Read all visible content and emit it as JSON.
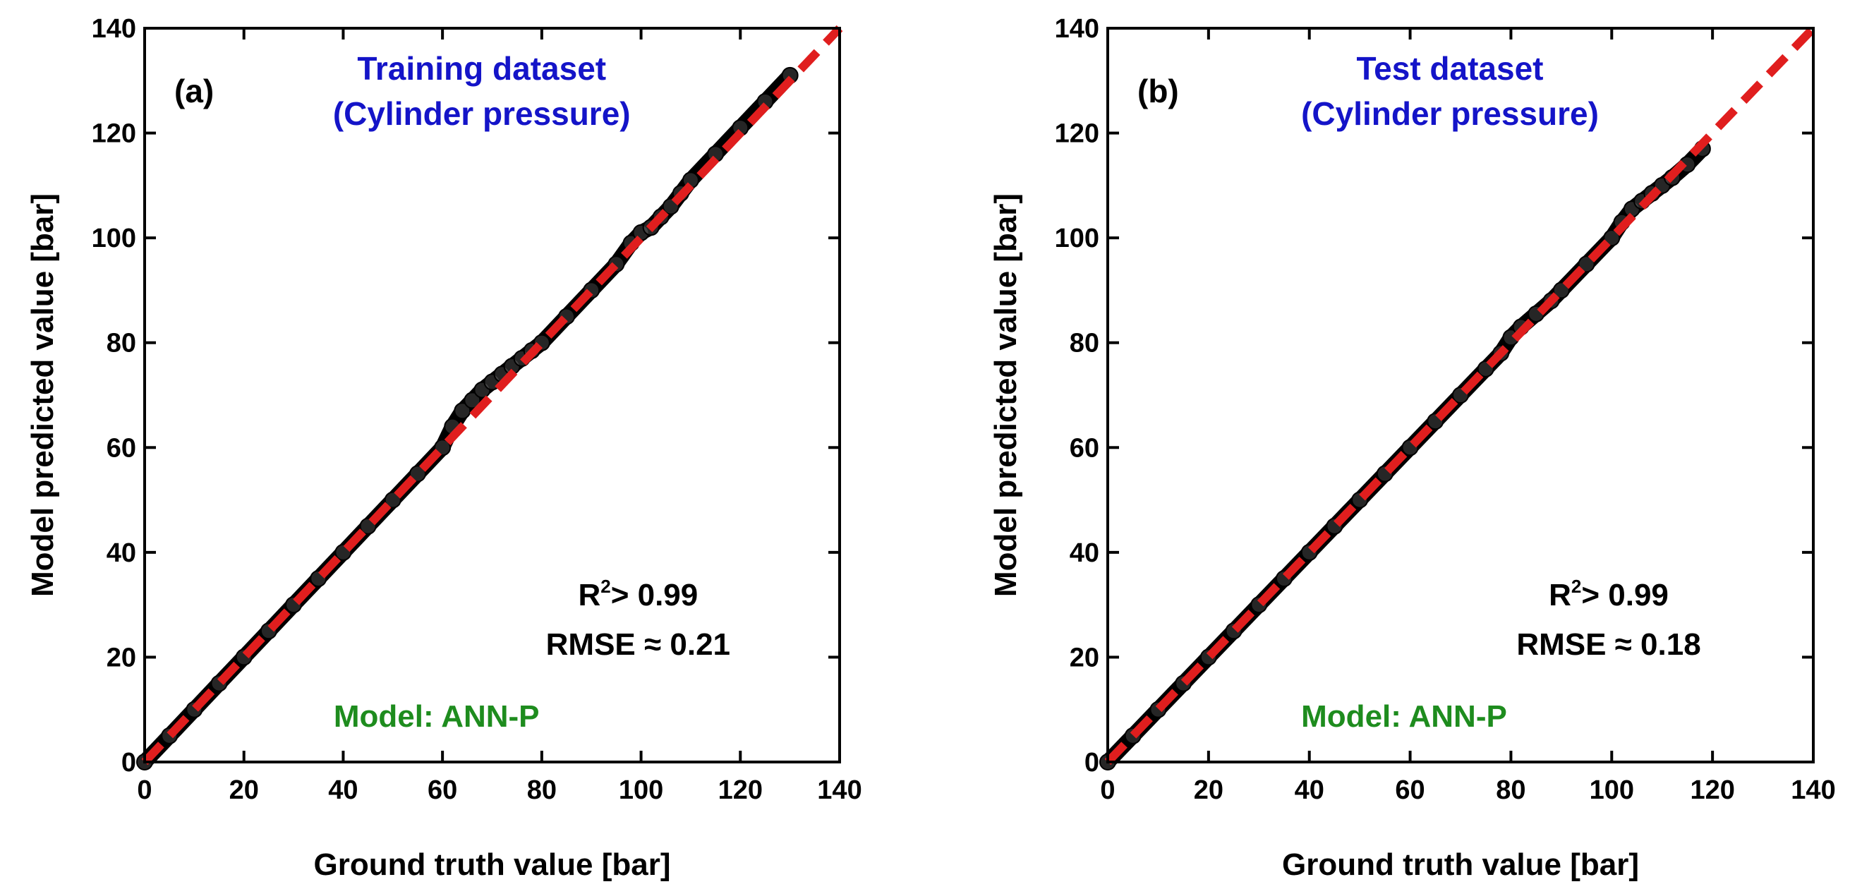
{
  "colors": {
    "title": "#1414c8",
    "model": "#1e8c1e",
    "parity_line": "#e01e1e",
    "points": "#000000"
  },
  "chart_data": [
    {
      "type": "scatter",
      "panel_label": "(a)",
      "title": "Training dataset",
      "subtitle": "(Cylinder pressure)",
      "xlabel": "Ground truth value [bar]",
      "ylabel": "Model predicted value [bar]",
      "xlim": [
        0,
        140
      ],
      "ylim": [
        0,
        140
      ],
      "xticks": [
        0,
        20,
        40,
        60,
        80,
        100,
        120,
        140
      ],
      "yticks": [
        0,
        20,
        40,
        60,
        80,
        100,
        120,
        140
      ],
      "r2_text": "> 0.99",
      "rmse_text": "RMSE ≈ 0.21",
      "model_text": "Model: ANN-P",
      "parity_line": {
        "x": [
          0,
          140
        ],
        "y": [
          0,
          140
        ],
        "style": "dashed"
      },
      "series": [
        {
          "name": "predicted vs ground truth",
          "x": [
            0,
            5,
            10,
            15,
            20,
            25,
            30,
            35,
            40,
            45,
            50,
            55,
            60,
            62,
            64,
            66,
            68,
            70,
            72,
            74,
            76,
            78,
            80,
            85,
            90,
            95,
            98,
            100,
            102,
            104,
            106,
            108,
            110,
            115,
            120,
            125,
            130
          ],
          "y": [
            0,
            5,
            10,
            15,
            20,
            25,
            30,
            35,
            40,
            45,
            50,
            55,
            60,
            64,
            67,
            69,
            71,
            72.5,
            74,
            75.5,
            77,
            78.5,
            80,
            85,
            90,
            95,
            99,
            101,
            102,
            104,
            106,
            108.5,
            111,
            116,
            121,
            126,
            131
          ]
        }
      ]
    },
    {
      "type": "scatter",
      "panel_label": "(b)",
      "title": "Test dataset",
      "subtitle": "(Cylinder pressure)",
      "xlabel": "Ground truth value [bar]",
      "ylabel": "Model predicted value [bar]",
      "xlim": [
        0,
        140
      ],
      "ylim": [
        0,
        140
      ],
      "xticks": [
        0,
        20,
        40,
        60,
        80,
        100,
        120,
        140
      ],
      "yticks": [
        0,
        20,
        40,
        60,
        80,
        100,
        120,
        140
      ],
      "r2_text": "> 0.99",
      "rmse_text": "RMSE ≈ 0.18",
      "model_text": "Model: ANN-P",
      "parity_line": {
        "x": [
          0,
          140
        ],
        "y": [
          0,
          140
        ],
        "style": "dashed"
      },
      "series": [
        {
          "name": "predicted vs ground truth",
          "x": [
            0,
            5,
            10,
            15,
            20,
            25,
            30,
            35,
            40,
            45,
            50,
            55,
            60,
            65,
            70,
            75,
            78,
            80,
            82,
            85,
            88,
            90,
            95,
            100,
            102,
            104,
            106,
            108,
            110,
            112,
            115,
            118
          ],
          "y": [
            0,
            5,
            10,
            15,
            20,
            25,
            30,
            35,
            40,
            45,
            50,
            55,
            60,
            65,
            70,
            75,
            78,
            81,
            83,
            85.5,
            88,
            90,
            95,
            100,
            103,
            105.5,
            107,
            108.5,
            110,
            111.5,
            114,
            117
          ]
        }
      ]
    }
  ]
}
